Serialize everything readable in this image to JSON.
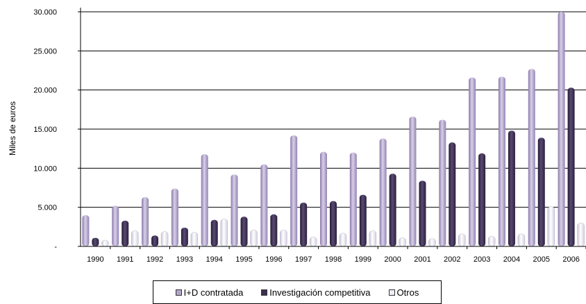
{
  "chart_data": {
    "type": "bar",
    "title": "",
    "xlabel": "",
    "ylabel": "Miles de euros",
    "ylim": [
      0,
      30000
    ],
    "yticks": [
      0,
      5000,
      10000,
      15000,
      20000,
      25000,
      30000
    ],
    "ytick_labels": [
      "-",
      "5.000",
      "10.000",
      "15.000",
      "20.000",
      "25.000",
      "30.000"
    ],
    "categories": [
      "1990",
      "1991",
      "1992",
      "1993",
      "1994",
      "1995",
      "1996",
      "1997",
      "1998",
      "1999",
      "2000",
      "2001",
      "2002",
      "2003",
      "2004",
      "2005",
      "2006"
    ],
    "series": [
      {
        "name": "I+D contratada",
        "color": "#b3a6cc",
        "values": [
          4000,
          5200,
          6300,
          7400,
          11800,
          9200,
          10500,
          14200,
          12100,
          12000,
          13800,
          16600,
          16200,
          21600,
          21700,
          22700,
          30000
        ]
      },
      {
        "name": "Investigación competitiva",
        "color": "#3d2f52",
        "values": [
          1100,
          3300,
          1400,
          2400,
          3400,
          3800,
          4100,
          5600,
          5800,
          6600,
          9300,
          8400,
          13300,
          11900,
          14800,
          13900,
          20300
        ]
      },
      {
        "name": "Otros",
        "color": "#eeecf4",
        "values": [
          800,
          2000,
          1900,
          1800,
          3500,
          2100,
          2100,
          1200,
          1700,
          2000,
          1100,
          1000,
          1600,
          1300,
          1600,
          5100,
          3000
        ]
      }
    ],
    "grid": true,
    "legend_position": "bottom"
  }
}
